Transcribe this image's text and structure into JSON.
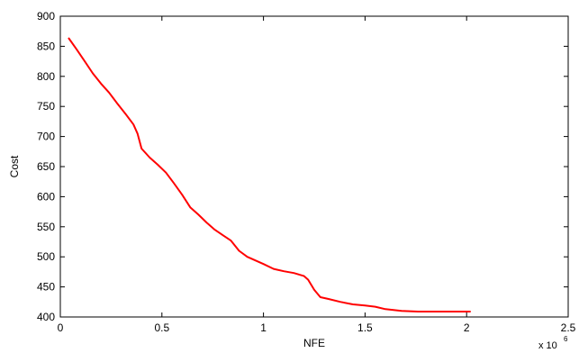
{
  "chart_data": {
    "type": "line",
    "title": "",
    "xlabel": "NFE",
    "ylabel": "Cost",
    "x_multiplier_label": "x 10",
    "x_multiplier_exponent": "6",
    "xlim": [
      0,
      2.5
    ],
    "ylim": [
      400,
      900
    ],
    "x_ticks": [
      0,
      0.5,
      1,
      1.5,
      2,
      2.5
    ],
    "x_tick_labels": [
      "0",
      "0.5",
      "1",
      "1.5",
      "2",
      "2.5"
    ],
    "y_ticks": [
      400,
      450,
      500,
      550,
      600,
      650,
      700,
      750,
      800,
      850,
      900
    ],
    "y_tick_labels": [
      "400",
      "450",
      "500",
      "550",
      "600",
      "650",
      "700",
      "750",
      "800",
      "850",
      "900"
    ],
    "grid": false,
    "series": [
      {
        "color": "#ff0000",
        "x": [
          0.04,
          0.08,
          0.12,
          0.16,
          0.2,
          0.24,
          0.28,
          0.32,
          0.36,
          0.38,
          0.4,
          0.44,
          0.48,
          0.52,
          0.56,
          0.6,
          0.64,
          0.68,
          0.72,
          0.76,
          0.8,
          0.84,
          0.88,
          0.92,
          0.96,
          1.0,
          1.05,
          1.1,
          1.15,
          1.2,
          1.22,
          1.25,
          1.28,
          1.32,
          1.38,
          1.44,
          1.5,
          1.55,
          1.6,
          1.68,
          1.76,
          1.85,
          1.95,
          2.02
        ],
        "y": [
          864,
          845,
          825,
          805,
          788,
          773,
          755,
          738,
          720,
          705,
          680,
          665,
          653,
          640,
          622,
          603,
          582,
          570,
          557,
          545,
          536,
          527,
          510,
          500,
          494,
          488,
          480,
          476,
          473,
          468,
          462,
          445,
          433,
          430,
          425,
          421,
          419,
          417,
          413,
          410,
          409,
          409,
          409,
          409
        ]
      }
    ]
  }
}
